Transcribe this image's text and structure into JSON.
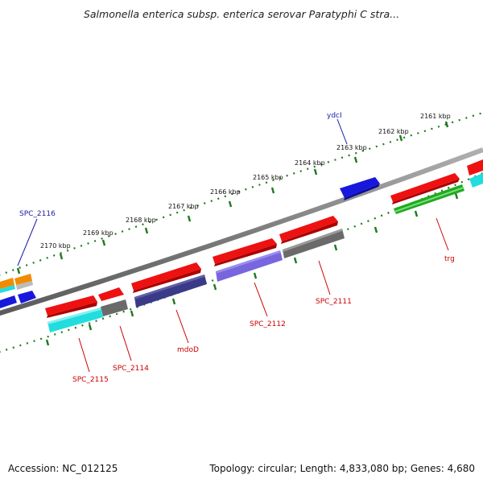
{
  "title": "Salmonella enterica subsp. enterica serovar Paratyphi C stra...",
  "footer": {
    "accession": "Accession: NC_012125",
    "summary": "Topology: circular; Length: 4,833,080 bp; Genes: 4,680"
  },
  "ticks": [
    "2161 kbp",
    "2162 kbp",
    "2163 kbp",
    "2164 kbp",
    "2165 kbp",
    "2166 kbp",
    "2167 kbp",
    "2168 kbp",
    "2169 kbp",
    "2170 kbp"
  ],
  "gene_labels": {
    "ydcI": "ydcI",
    "SPC_2116": "SPC_2116",
    "trg": "trg",
    "SPC_2111": "SPC_2111",
    "SPC_2112": "SPC_2112",
    "mdoD": "mdoD",
    "SPC_2114": "SPC_2114",
    "SPC_2115": "SPC_2115"
  },
  "colors": {
    "backbone": "#808080",
    "tick": "#1e7a1e",
    "forward_label": "#1a1aa8",
    "reverse_label": "#cc0000",
    "red": "#ee1111",
    "blue": "#1818dd",
    "cyan": "#22dddd",
    "gray": "#6a6a6a",
    "navy": "#3a3a88",
    "lavender": "#7766dd",
    "green": "#22aa22",
    "orange": "#f08c00"
  }
}
